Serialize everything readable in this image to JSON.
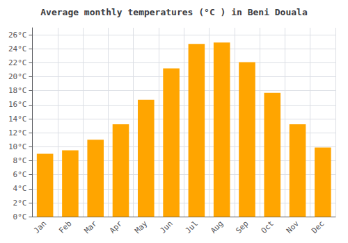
{
  "chart_data": {
    "type": "bar",
    "title": "Average monthly temperatures (°C ) in Beni Douala",
    "categories": [
      "Jan",
      "Feb",
      "Mar",
      "Apr",
      "May",
      "Jun",
      "Jul",
      "Aug",
      "Sep",
      "Oct",
      "Nov",
      "Dec"
    ],
    "values": [
      9.0,
      9.5,
      11.0,
      13.2,
      16.7,
      21.2,
      24.7,
      24.9,
      22.1,
      17.7,
      13.2,
      9.9
    ],
    "color": "#FFA500",
    "ylim": [
      0,
      27
    ],
    "yticks": [
      {
        "value": 0,
        "label": "0°C"
      },
      {
        "value": 2,
        "label": "2°C"
      },
      {
        "value": 4,
        "label": "4°C"
      },
      {
        "value": 6,
        "label": "6°C"
      },
      {
        "value": 8,
        "label": "8°C"
      },
      {
        "value": 10,
        "label": "10°C"
      },
      {
        "value": 12,
        "label": "12°C"
      },
      {
        "value": 14,
        "label": "14°C"
      },
      {
        "value": 16,
        "label": "16°C"
      },
      {
        "value": 18,
        "label": "18°C"
      },
      {
        "value": 20,
        "label": "20°C"
      },
      {
        "value": 22,
        "label": "22°C"
      },
      {
        "value": 24,
        "label": "24°C"
      },
      {
        "value": 26,
        "label": "26°C"
      }
    ],
    "grid": true
  }
}
